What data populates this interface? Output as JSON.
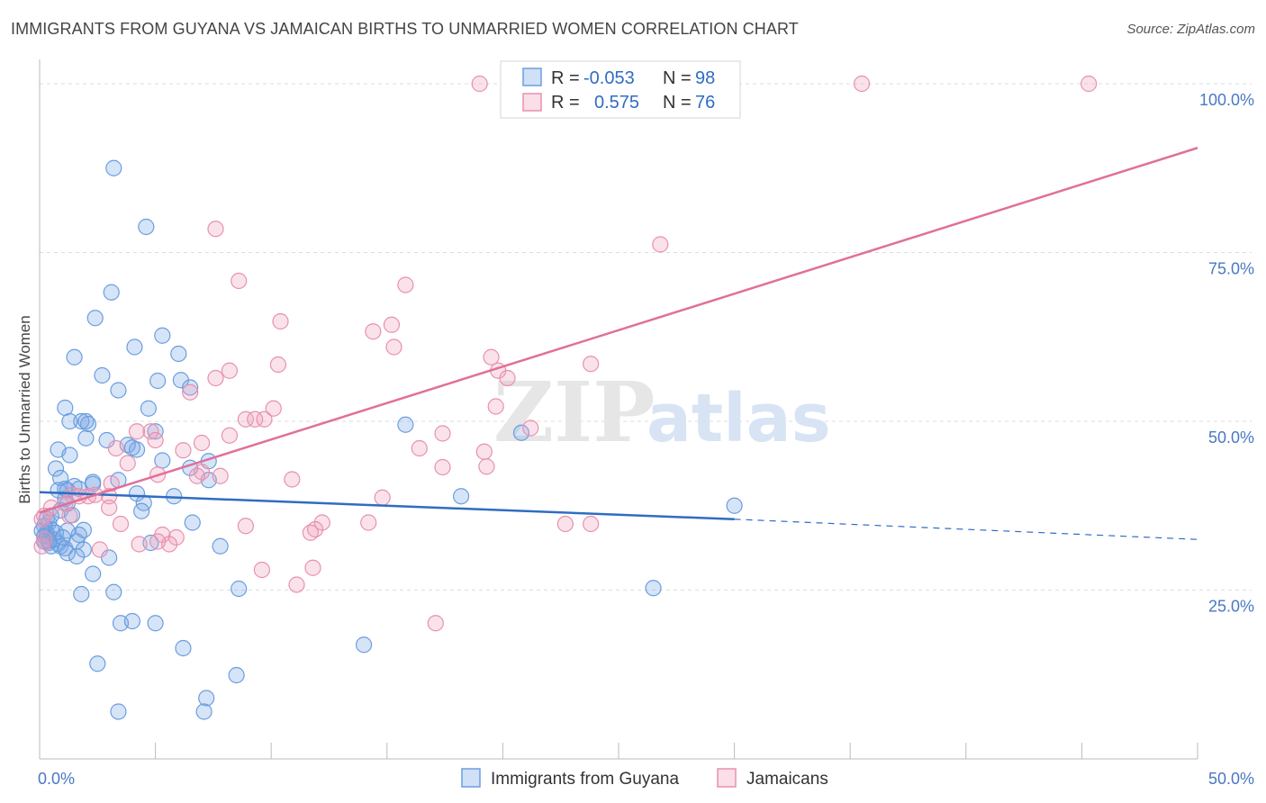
{
  "title": "IMMIGRANTS FROM GUYANA VS JAMAICAN BIRTHS TO UNMARRIED WOMEN CORRELATION CHART",
  "source": "Source: ZipAtlas.com",
  "watermark": {
    "zip": "ZIP",
    "atlas": "atlas"
  },
  "colors": {
    "blue": "#6a9de0",
    "blue_fill": "rgba(120,165,230,0.30)",
    "blue_line": "#2f6dc2",
    "pink": "#e890ad",
    "pink_fill": "rgba(240,160,190,0.30)",
    "pink_line": "#e0709a",
    "grid": "#dcdcdc",
    "tick_text": "#4a78c4"
  },
  "legend_top": {
    "rows": [
      {
        "r_label": "R =",
        "r_value": "-0.053",
        "n_label": "N =",
        "n_value": "98"
      },
      {
        "r_label": "R =",
        "r_value": "0.575",
        "n_label": "N =",
        "n_value": "76"
      }
    ]
  },
  "chart_data": {
    "type": "scatter",
    "title": "IMMIGRANTS FROM GUYANA VS JAMAICAN BIRTHS TO UNMARRIED WOMEN CORRELATION CHART",
    "xlabel": "",
    "ylabel": "Births to Unmarried Women",
    "xlim": [
      0,
      50
    ],
    "ylim": [
      0,
      102
    ],
    "x_tick_labels": [
      "0.0%",
      "50.0%"
    ],
    "y_ticks": [
      25,
      50,
      75,
      100
    ],
    "y_tick_labels": [
      "25.0%",
      "50.0%",
      "75.0%",
      "100.0%"
    ],
    "grid": true,
    "legend_position": "bottom",
    "series": [
      {
        "name": "Immigrants from Guyana",
        "R": -0.053,
        "N": 98,
        "trend": {
          "x": [
            0,
            30
          ],
          "y": [
            39.5,
            35.5
          ],
          "dashed_extension_to_x": 50,
          "dashed_end_y": 32.5
        },
        "points": [
          [
            3.2,
            87.5
          ],
          [
            4.6,
            78.8
          ],
          [
            3.1,
            69.1
          ],
          [
            2.4,
            65.3
          ],
          [
            4.1,
            61.0
          ],
          [
            5.3,
            62.7
          ],
          [
            6.0,
            60.0
          ],
          [
            1.5,
            59.5
          ],
          [
            2.7,
            56.8
          ],
          [
            5.1,
            56.0
          ],
          [
            6.1,
            56.1
          ],
          [
            3.4,
            54.6
          ],
          [
            6.5,
            55.0
          ],
          [
            1.1,
            52.0
          ],
          [
            4.7,
            51.9
          ],
          [
            1.3,
            50.0
          ],
          [
            1.8,
            50.0
          ],
          [
            2.0,
            50.0
          ],
          [
            2.1,
            49.6
          ],
          [
            5.0,
            48.5
          ],
          [
            2.9,
            47.2
          ],
          [
            2.0,
            47.5
          ],
          [
            3.8,
            46.5
          ],
          [
            4.2,
            45.8
          ],
          [
            0.8,
            45.8
          ],
          [
            4.0,
            46.1
          ],
          [
            1.3,
            45.0
          ],
          [
            5.3,
            44.2
          ],
          [
            7.3,
            44.1
          ],
          [
            6.5,
            43.1
          ],
          [
            0.7,
            43.0
          ],
          [
            0.9,
            41.6
          ],
          [
            1.5,
            40.4
          ],
          [
            1.1,
            40.0
          ],
          [
            0.8,
            39.8
          ],
          [
            2.3,
            40.7
          ],
          [
            1.7,
            40.0
          ],
          [
            1.2,
            39.8
          ],
          [
            3.4,
            41.3
          ],
          [
            4.2,
            39.3
          ],
          [
            2.3,
            41.0
          ],
          [
            7.3,
            41.3
          ],
          [
            1.1,
            38.5
          ],
          [
            1.2,
            37.8
          ],
          [
            0.9,
            36.8
          ],
          [
            4.5,
            37.9
          ],
          [
            5.8,
            38.9
          ],
          [
            4.4,
            36.7
          ],
          [
            1.4,
            36.1
          ],
          [
            0.3,
            35.5
          ],
          [
            0.5,
            34.0
          ],
          [
            0.3,
            33.5
          ],
          [
            1.2,
            33.8
          ],
          [
            1.9,
            33.9
          ],
          [
            0.2,
            32.2
          ],
          [
            0.4,
            32.0
          ],
          [
            0.8,
            31.9
          ],
          [
            0.9,
            31.5
          ],
          [
            1.1,
            31.2
          ],
          [
            1.6,
            32.2
          ],
          [
            1.9,
            31.0
          ],
          [
            1.7,
            33.2
          ],
          [
            1.2,
            30.5
          ],
          [
            1.6,
            30.0
          ],
          [
            0.2,
            33.0
          ],
          [
            0.5,
            31.5
          ],
          [
            6.6,
            35.0
          ],
          [
            7.8,
            31.5
          ],
          [
            4.8,
            32.0
          ],
          [
            2.3,
            27.4
          ],
          [
            3.0,
            29.8
          ],
          [
            3.2,
            24.7
          ],
          [
            1.8,
            24.4
          ],
          [
            8.6,
            25.2
          ],
          [
            3.5,
            20.1
          ],
          [
            4.0,
            20.4
          ],
          [
            5.0,
            20.1
          ],
          [
            6.2,
            16.4
          ],
          [
            2.5,
            14.1
          ],
          [
            8.5,
            12.4
          ],
          [
            14.0,
            16.9
          ],
          [
            7.2,
            9.0
          ],
          [
            3.4,
            7.0
          ],
          [
            7.1,
            7.0
          ],
          [
            15.8,
            49.5
          ],
          [
            20.8,
            48.3
          ],
          [
            18.2,
            38.9
          ],
          [
            26.5,
            25.3
          ],
          [
            30.0,
            37.5
          ],
          [
            0.4,
            35.0
          ],
          [
            0.2,
            34.5
          ],
          [
            0.3,
            33.0
          ],
          [
            0.6,
            32.5
          ],
          [
            0.7,
            33.5
          ],
          [
            1.0,
            32.8
          ],
          [
            0.4,
            32.3
          ],
          [
            0.1,
            33.8
          ],
          [
            0.5,
            36.0
          ]
        ]
      },
      {
        "name": "Jamaicans",
        "R": 0.575,
        "N": 76,
        "trend": {
          "x": [
            0,
            50
          ],
          "y": [
            36.5,
            90.5
          ]
        },
        "points": [
          [
            19.0,
            100.0
          ],
          [
            35.5,
            100.0
          ],
          [
            45.3,
            100.0
          ],
          [
            7.6,
            78.5
          ],
          [
            26.8,
            76.2
          ],
          [
            8.6,
            70.8
          ],
          [
            15.8,
            70.2
          ],
          [
            10.4,
            64.8
          ],
          [
            14.4,
            63.3
          ],
          [
            15.2,
            64.3
          ],
          [
            15.3,
            61.0
          ],
          [
            19.5,
            59.5
          ],
          [
            23.8,
            58.5
          ],
          [
            10.3,
            58.4
          ],
          [
            8.2,
            57.5
          ],
          [
            19.8,
            57.5
          ],
          [
            20.2,
            56.4
          ],
          [
            7.6,
            56.4
          ],
          [
            6.5,
            54.3
          ],
          [
            19.7,
            52.2
          ],
          [
            10.1,
            51.9
          ],
          [
            9.7,
            50.3
          ],
          [
            8.9,
            50.3
          ],
          [
            9.3,
            50.3
          ],
          [
            4.8,
            48.5
          ],
          [
            4.2,
            48.5
          ],
          [
            17.4,
            48.2
          ],
          [
            21.2,
            49.0
          ],
          [
            8.2,
            47.9
          ],
          [
            5.0,
            47.2
          ],
          [
            7.0,
            46.8
          ],
          [
            16.4,
            46.0
          ],
          [
            6.2,
            45.7
          ],
          [
            19.2,
            45.5
          ],
          [
            3.3,
            46.0
          ],
          [
            3.8,
            43.8
          ],
          [
            17.4,
            43.2
          ],
          [
            19.3,
            43.3
          ],
          [
            7.0,
            42.5
          ],
          [
            7.8,
            41.9
          ],
          [
            5.1,
            42.1
          ],
          [
            6.8,
            41.9
          ],
          [
            10.9,
            41.4
          ],
          [
            3.1,
            40.8
          ],
          [
            1.4,
            39.1
          ],
          [
            2.1,
            38.9
          ],
          [
            3.0,
            38.9
          ],
          [
            1.7,
            38.9
          ],
          [
            2.4,
            39.1
          ],
          [
            14.8,
            38.7
          ],
          [
            0.5,
            37.2
          ],
          [
            1.1,
            37.8
          ],
          [
            3.0,
            37.2
          ],
          [
            1.3,
            36.0
          ],
          [
            0.2,
            36.0
          ],
          [
            0.1,
            35.5
          ],
          [
            3.5,
            34.8
          ],
          [
            8.9,
            34.5
          ],
          [
            12.2,
            35.0
          ],
          [
            14.2,
            35.0
          ],
          [
            11.9,
            34.0
          ],
          [
            11.7,
            33.5
          ],
          [
            22.7,
            34.8
          ],
          [
            23.8,
            34.8
          ],
          [
            5.3,
            33.2
          ],
          [
            5.9,
            32.8
          ],
          [
            4.3,
            31.8
          ],
          [
            5.6,
            31.8
          ],
          [
            2.6,
            31.0
          ],
          [
            5.1,
            32.2
          ],
          [
            0.1,
            31.5
          ],
          [
            9.6,
            28.0
          ],
          [
            11.8,
            28.3
          ],
          [
            11.1,
            25.8
          ],
          [
            17.1,
            20.1
          ],
          [
            0.2,
            32.5
          ]
        ]
      }
    ]
  },
  "bottom_legend": [
    {
      "label": "Immigrants from Guyana"
    },
    {
      "label": "Jamaicans"
    }
  ]
}
